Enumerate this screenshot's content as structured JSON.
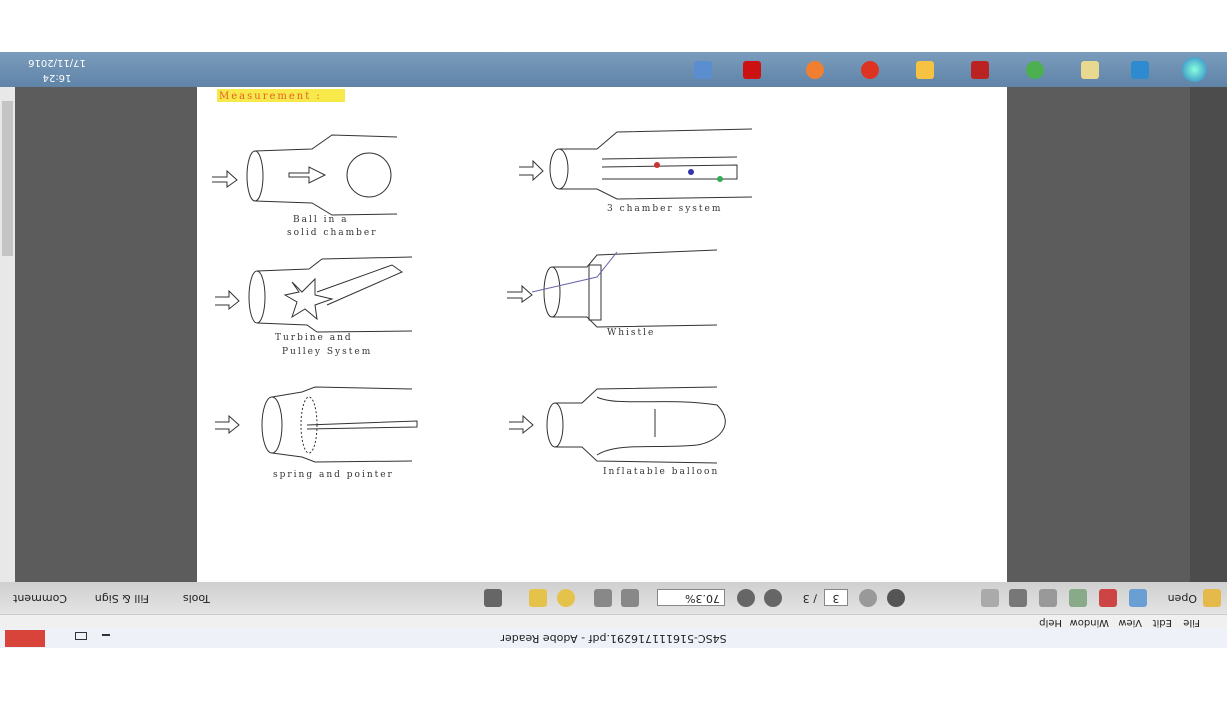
{
  "window": {
    "title": "S4SC-516111716291.pdf - Adobe Reader"
  },
  "menu": [
    "File",
    "Edit",
    "View",
    "Window",
    "Help"
  ],
  "toolbar": {
    "open": "Open",
    "page": "3",
    "page_total": "/ 3",
    "zoom": "70.3%",
    "tools": "Tools",
    "fill_sign": "Fill & Sign",
    "comment": "Comment"
  },
  "taskbar": {
    "time": "16:24",
    "date": "17/11/2016"
  },
  "page": {
    "heading": "Measurement :",
    "labels": [
      [
        "Ball in a",
        "solid chamber"
      ],
      [
        "3 chamber system"
      ],
      [
        "Turbine and",
        "Pulley System"
      ],
      [
        "Whistle"
      ],
      [
        "spring and pointer"
      ],
      [
        "Inflatable balloon"
      ]
    ]
  }
}
